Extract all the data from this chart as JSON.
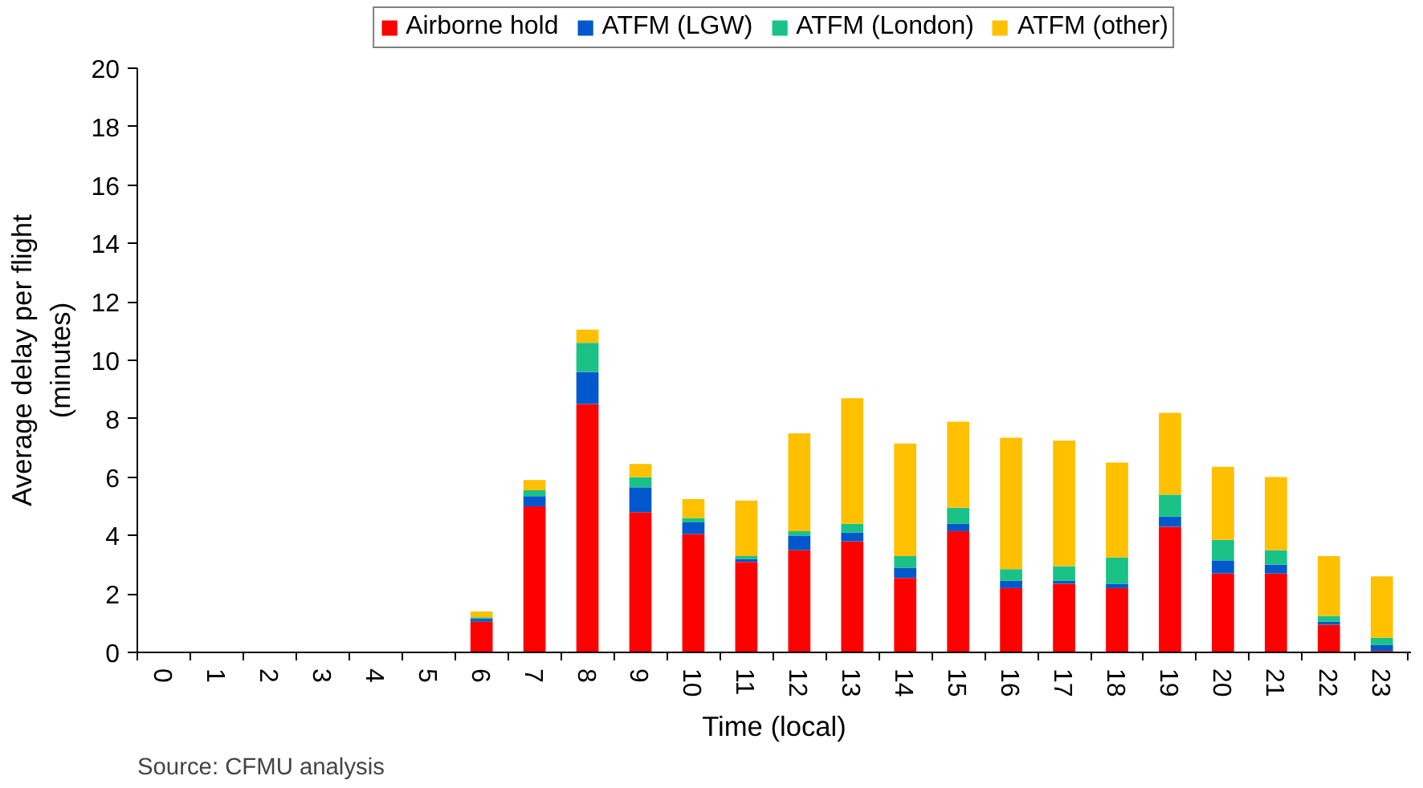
{
  "chart_data": {
    "type": "bar",
    "stacked": true,
    "xlabel": "Time (local)",
    "ylabel": "Average delay per flight\n(minutes)",
    "categories": [
      "0",
      "1",
      "2",
      "3",
      "4",
      "5",
      "6",
      "7",
      "8",
      "9",
      "10",
      "11",
      "12",
      "13",
      "14",
      "15",
      "16",
      "17",
      "18",
      "19",
      "20",
      "21",
      "22",
      "23"
    ],
    "series": [
      {
        "name": "Airborne hold",
        "color": "#ff0000",
        "values": [
          0,
          0,
          0,
          0,
          0,
          0,
          1.05,
          5.0,
          8.5,
          4.8,
          4.05,
          3.1,
          3.5,
          3.8,
          2.55,
          4.15,
          2.2,
          2.35,
          2.2,
          4.3,
          2.7,
          2.7,
          0.95,
          0.05
        ]
      },
      {
        "name": "ATFM (LGW)",
        "color": "#0058cc",
        "values": [
          0,
          0,
          0,
          0,
          0,
          0,
          0.1,
          0.35,
          1.1,
          0.85,
          0.4,
          0.1,
          0.5,
          0.3,
          0.35,
          0.25,
          0.25,
          0.1,
          0.15,
          0.35,
          0.45,
          0.3,
          0.1,
          0.2
        ]
      },
      {
        "name": "ATFM (London)",
        "color": "#1ac287",
        "values": [
          0,
          0,
          0,
          0,
          0,
          0,
          0.05,
          0.2,
          1.0,
          0.35,
          0.15,
          0.1,
          0.15,
          0.3,
          0.4,
          0.55,
          0.4,
          0.5,
          0.9,
          0.75,
          0.7,
          0.5,
          0.2,
          0.25
        ]
      },
      {
        "name": "ATFM (other)",
        "color": "#ffc000",
        "values": [
          0,
          0,
          0,
          0,
          0,
          0,
          0.2,
          0.35,
          0.45,
          0.45,
          0.65,
          1.9,
          3.35,
          4.3,
          3.85,
          2.95,
          4.5,
          4.3,
          3.25,
          2.8,
          2.5,
          2.5,
          2.05,
          2.1
        ]
      }
    ],
    "ylim": [
      0,
      20
    ],
    "yticks": [
      0,
      2,
      4,
      6,
      8,
      10,
      12,
      14,
      16,
      18,
      20
    ],
    "grid": false,
    "legend": "top",
    "annotations": [
      "Source: CFMU analysis"
    ]
  }
}
